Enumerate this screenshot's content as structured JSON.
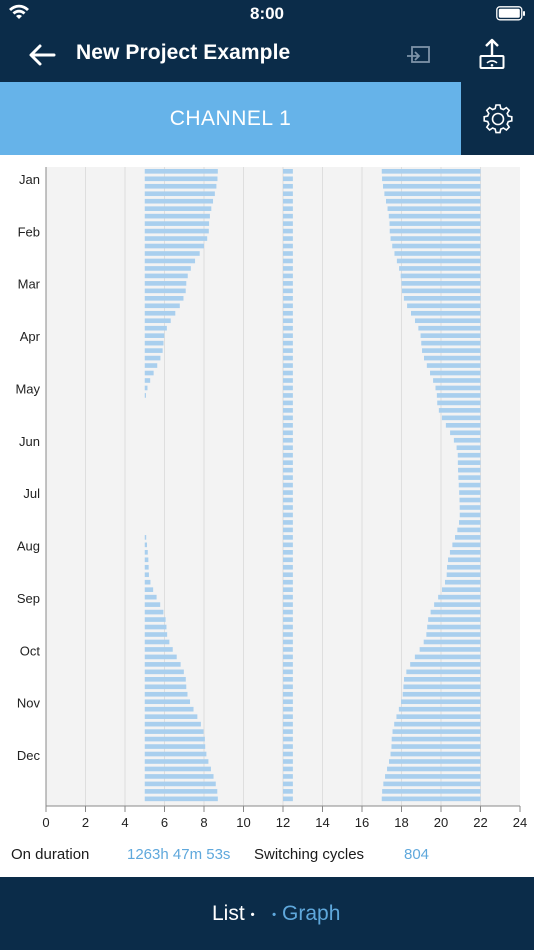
{
  "status_bar": {
    "time": "8:00"
  },
  "header": {
    "title": "New Project Example"
  },
  "channel": {
    "label": "CHANNEL 1"
  },
  "chart_data": {
    "type": "bar",
    "orientation": "horizontal-range",
    "xlim": [
      0,
      24
    ],
    "x_ticks": [
      "0",
      "2",
      "4",
      "6",
      "8",
      "10",
      "12",
      "14",
      "16",
      "18",
      "20",
      "22",
      "24"
    ],
    "y_labels": [
      "Jan",
      "Feb",
      "Mar",
      "Apr",
      "May",
      "Jun",
      "Jul",
      "Aug",
      "Sep",
      "Oct",
      "Nov",
      "Dec"
    ],
    "grid": true,
    "series_color": "#a9cfee",
    "bar_stripe_color": "#d8e9f6",
    "plot_background": "#f3f3f3",
    "segments": [
      {
        "name": "morning",
        "start_h": 5.0,
        "end_h_by_month": [
          8.7,
          8.25,
          7.1,
          5.95,
          5.05,
          5.0,
          5.0,
          5.2,
          6.1,
          7.1,
          8.05,
          8.7
        ]
      },
      {
        "name": "noon",
        "start_h": 12.0,
        "end_h": 12.5
      },
      {
        "name": "evening",
        "end_h": 22.0,
        "start_h_by_month": [
          17.0,
          17.4,
          18.0,
          19.0,
          19.8,
          20.85,
          20.95,
          20.3,
          19.3,
          18.1,
          17.5,
          17.0
        ]
      }
    ]
  },
  "stats": {
    "on_duration_label": "On duration",
    "on_duration_value": "1263h 47m 53s",
    "switching_label": "Switching cycles",
    "switching_value": "804"
  },
  "bottom_nav": {
    "list_label": "List",
    "graph_label": "Graph"
  }
}
